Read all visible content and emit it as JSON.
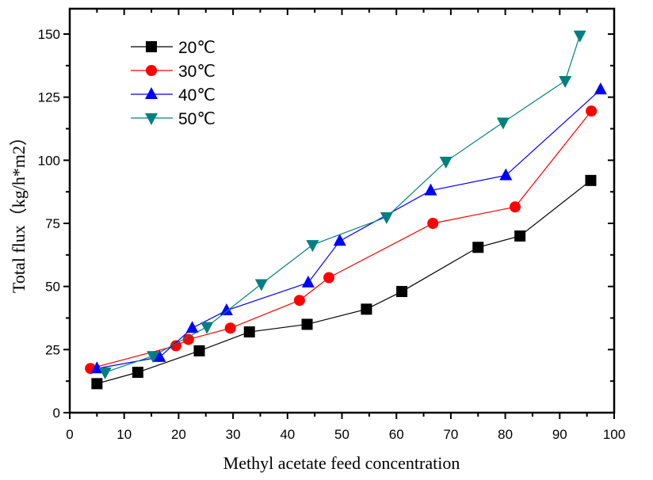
{
  "chart_data": {
    "type": "line",
    "title": "",
    "xlabel": "Methyl acetate feed concentration",
    "ylabel": "Total flux（kg/h*m2）",
    "xlim": [
      0,
      100
    ],
    "ylim": [
      0,
      160
    ],
    "xticks": [
      0,
      10,
      20,
      30,
      40,
      50,
      60,
      70,
      80,
      90,
      100
    ],
    "xtick_labels": [
      "0",
      "10",
      "20",
      "30",
      "40",
      "50",
      "60",
      "70",
      "80",
      "90",
      "100"
    ],
    "yticks": [
      0,
      25,
      50,
      75,
      100,
      125,
      150
    ],
    "ytick_labels": [
      "0",
      "25",
      "50",
      "75",
      "100",
      "125",
      "150"
    ],
    "grid": false,
    "legend_position": "top-left",
    "series": [
      {
        "name": "20℃",
        "color": "#000000",
        "marker": "square",
        "x": [
          5.0,
          12.5,
          23.8,
          33.0,
          43.6,
          54.5,
          61.0,
          75.0,
          82.7,
          95.7
        ],
        "y": [
          11.5,
          16.0,
          24.5,
          32.0,
          35.0,
          41.0,
          48.0,
          65.5,
          70.0,
          92.0
        ]
      },
      {
        "name": "30℃",
        "color": "#ff0000",
        "marker": "circle",
        "x": [
          3.8,
          19.5,
          21.8,
          29.5,
          42.2,
          47.6,
          66.7,
          81.8,
          95.8
        ],
        "y": [
          17.5,
          26.5,
          29.0,
          33.5,
          44.5,
          53.5,
          75.0,
          81.5,
          119.5
        ]
      },
      {
        "name": "40℃",
        "color": "#0000ff",
        "marker": "triangle-up",
        "x": [
          5.0,
          16.5,
          22.5,
          28.8,
          43.8,
          49.6,
          66.3,
          80.1,
          97.5
        ],
        "y": [
          17.5,
          22.0,
          33.5,
          40.5,
          51.5,
          68.0,
          88.0,
          94.0,
          128.0
        ]
      },
      {
        "name": "50℃",
        "color": "#008080",
        "marker": "triangle-down",
        "x": [
          6.5,
          15.3,
          25.2,
          35.2,
          44.6,
          58.2,
          69.1,
          79.6,
          91.0,
          93.7
        ],
        "y": [
          16.0,
          22.5,
          34.0,
          51.0,
          66.5,
          77.5,
          99.5,
          115.0,
          131.5,
          149.5
        ]
      }
    ]
  }
}
